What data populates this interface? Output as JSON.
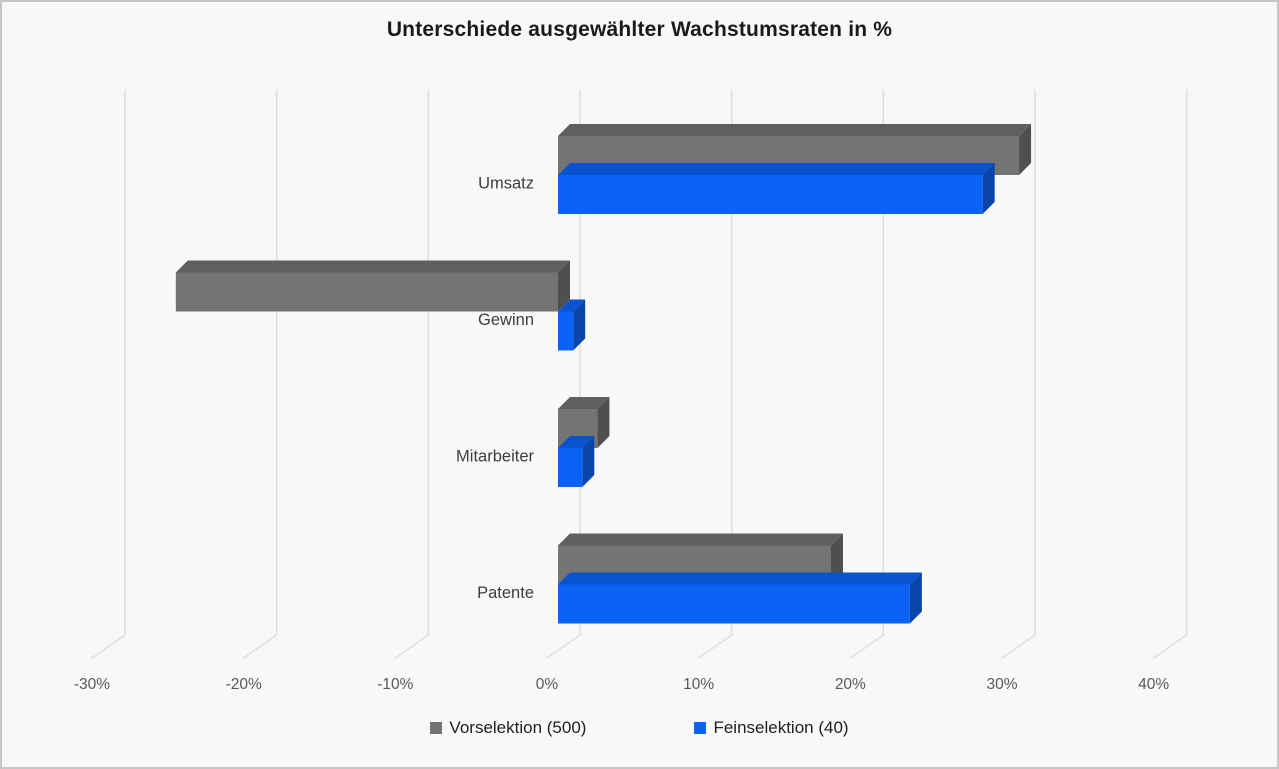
{
  "title": "Unterschiede ausgewählter Wachstumsraten in %",
  "chart_data": {
    "type": "bar",
    "orientation": "horizontal",
    "style": "3d",
    "title": "Unterschiede ausgewählter Wachstumsraten in %",
    "categories": [
      "Umsatz",
      "Gewinn",
      "Mitarbeiter",
      "Patente"
    ],
    "series": [
      {
        "name": "Vorselektion (500)",
        "values": [
          30.4,
          -25.2,
          2.6,
          18.0
        ]
      },
      {
        "name": "Feinselektion (40)",
        "values": [
          28.0,
          1.0,
          1.6,
          23.2
        ]
      }
    ],
    "x_ticks": [
      "-30%",
      "-20%",
      "-10%",
      "0%",
      "10%",
      "20%",
      "30%",
      "40%"
    ],
    "x_tick_values": [
      -30,
      -20,
      -10,
      0,
      10,
      20,
      30,
      40
    ],
    "xlim": [
      -30,
      40
    ],
    "xlabel": "",
    "ylabel": "",
    "grid": true,
    "legend_position": "bottom"
  },
  "legend": {
    "items": [
      {
        "label": "Vorselektion (500)",
        "color": "#747474"
      },
      {
        "label": "Feinselektion (40)",
        "color": "#0B63F5"
      }
    ]
  },
  "colors": {
    "background": "#f8f8f8",
    "border": "#c6c6c6",
    "gridline": "#e0e0e0",
    "title_text": "#1a1a1a",
    "category_text": "#3d3d3d",
    "tick_text": "#595959",
    "series_gray": {
      "front": "#747474",
      "top": "#5F5F5F",
      "side": "#4F4F4F"
    },
    "series_blue": {
      "front": "#0B63F5",
      "top": "#0A52CE",
      "side": "#0A45AC"
    }
  }
}
